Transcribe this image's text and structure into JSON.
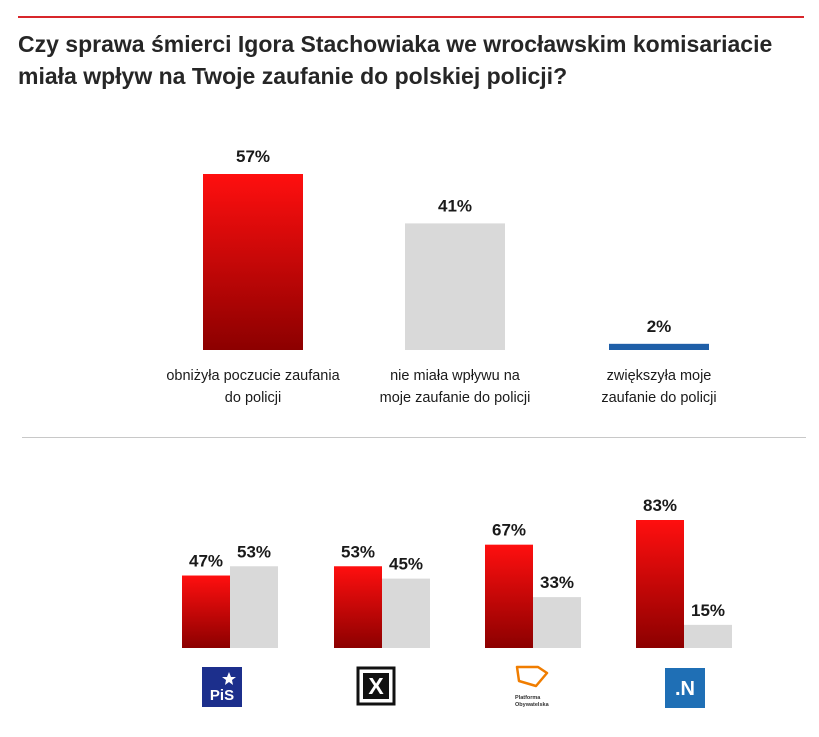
{
  "chart_data": [
    {
      "type": "bar",
      "title": "Czy sprawa śmierci Igora Stachowiaka we wrocławskim komisariacie miała wpływ na Twoje zaufanie do polskiej policji?",
      "categories": [
        [
          "obniżyła poczucie zaufania",
          "do policji"
        ],
        [
          "nie miała wpływu na",
          "moje zaufanie do policji"
        ],
        [
          "zwiększyła moje",
          "zaufanie do policji"
        ]
      ],
      "values": [
        57,
        41,
        2
      ],
      "value_labels": [
        "57%",
        "41%",
        "2%"
      ],
      "colors": [
        "#e3000f",
        "#d9d9d9",
        "#1f5fa8"
      ],
      "ylim": [
        0,
        57
      ]
    },
    {
      "type": "bar",
      "categories": [
        "PiS",
        "Kukiz'15",
        "Platforma Obywatelska",
        "Nowoczesna"
      ],
      "series": [
        {
          "name": "obniżyła poczucie zaufania do policji",
          "values": [
            47,
            53,
            67,
            83
          ],
          "labels": [
            "47%",
            "53%",
            "67%",
            "83%"
          ],
          "color": "#e3000f"
        },
        {
          "name": "nie miała wpływu na moje zaufanie do policji",
          "values": [
            53,
            45,
            33,
            15
          ],
          "labels": [
            "53%",
            "45%",
            "33%",
            "15%"
          ],
          "color": "#d9d9d9"
        }
      ],
      "ylim": [
        0,
        83
      ]
    }
  ],
  "logos": {
    "pis": {
      "text": "PiS",
      "bg": "#1c2f8c"
    },
    "kukiz": {
      "text": "X"
    },
    "po": {
      "line1": "Platforma",
      "line2": "Obywatelska",
      "color": "#f07d00"
    },
    "nowoczesna": {
      "text": ".N",
      "bg": "#1f6fb5"
    }
  },
  "colors": {
    "accent": "#d8262b"
  }
}
